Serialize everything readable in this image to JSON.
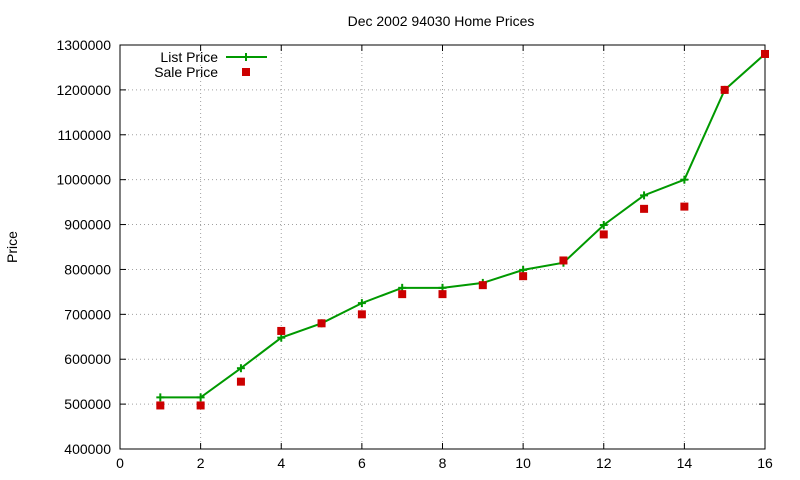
{
  "chart_data": {
    "type": "line",
    "title": "Dec 2002 94030 Home Prices",
    "xlabel": "",
    "ylabel": "Price",
    "xlim": [
      0,
      16
    ],
    "ylim": [
      400000,
      1300000
    ],
    "x_ticks": [
      0,
      2,
      4,
      6,
      8,
      10,
      12,
      14,
      16
    ],
    "y_ticks": [
      400000,
      500000,
      600000,
      700000,
      800000,
      900000,
      1000000,
      1100000,
      1200000,
      1300000
    ],
    "grid": true,
    "legend_position": "top-left",
    "series": [
      {
        "name": "List Price",
        "style": "line+cross",
        "color": "#009900",
        "x": [
          1,
          2,
          3,
          4,
          5,
          6,
          7,
          8,
          9,
          10,
          11,
          12,
          13,
          14,
          15,
          16
        ],
        "y": [
          515000,
          515000,
          580000,
          648000,
          680000,
          725000,
          759000,
          759000,
          770000,
          799000,
          815000,
          899000,
          965000,
          1000000,
          1200000,
          1280000
        ]
      },
      {
        "name": "Sale Price",
        "style": "square-points",
        "color": "#cc0000",
        "x": [
          1,
          2,
          3,
          4,
          5,
          6,
          7,
          8,
          9,
          10,
          11,
          12,
          13,
          14,
          15,
          16
        ],
        "y": [
          497000,
          497000,
          550000,
          663000,
          680000,
          700000,
          745000,
          745000,
          765000,
          785000,
          820000,
          878000,
          935000,
          940000,
          1200000,
          1280000
        ]
      }
    ]
  }
}
